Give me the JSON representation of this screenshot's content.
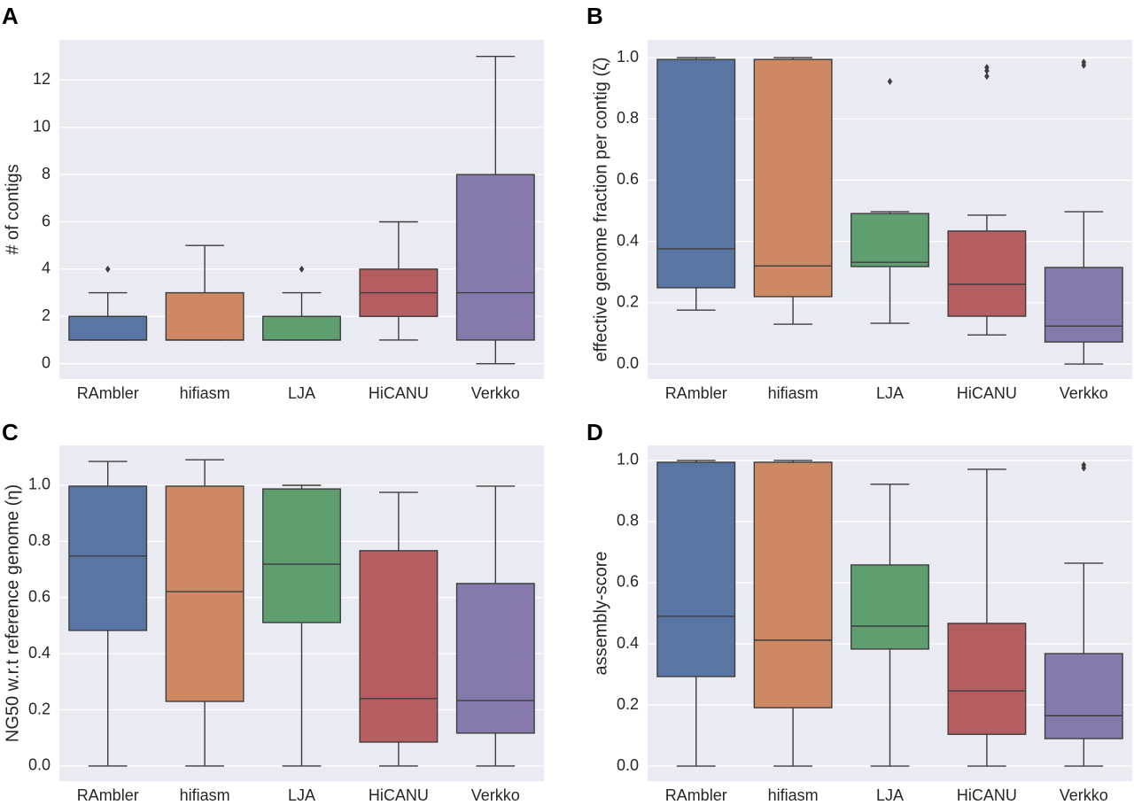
{
  "chart_data": [
    {
      "type": "box",
      "label": "A",
      "ylabel": "# of contigs",
      "categories": [
        "RAmbler",
        "hifiasm",
        "LJA",
        "HiCANU",
        "Verkko"
      ],
      "boxes": [
        {
          "color": "#5875a4",
          "min": 1,
          "q1": 1,
          "median": 1,
          "q3": 2,
          "max": 3,
          "outliers": [
            4
          ]
        },
        {
          "color": "#cc8963",
          "min": 1,
          "q1": 1,
          "median": 1,
          "q3": 3,
          "max": 5,
          "outliers": []
        },
        {
          "color": "#5f9e6e",
          "min": 1,
          "q1": 1,
          "median": 1,
          "q3": 2,
          "max": 3,
          "outliers": [
            4
          ]
        },
        {
          "color": "#b55d60",
          "min": 1,
          "q1": 2,
          "median": 3,
          "q3": 4,
          "max": 6,
          "outliers": []
        },
        {
          "color": "#857aab",
          "min": 0,
          "q1": 1,
          "median": 3,
          "q3": 8,
          "max": 13,
          "outliers": []
        }
      ],
      "ylim": [
        -0.65,
        13.7
      ],
      "yticks": [
        0,
        2,
        4,
        6,
        8,
        10,
        12
      ],
      "grid": true
    },
    {
      "type": "box",
      "label": "B",
      "ylabel": "effective genome fraction per contig (ζ)",
      "categories": [
        "RAmbler",
        "hifiasm",
        "LJA",
        "HiCANU",
        "Verkko"
      ],
      "boxes": [
        {
          "color": "#5875a4",
          "min": 0.176,
          "q1": 0.249,
          "median": 0.376,
          "q3": 0.994,
          "max": 1.0,
          "outliers": []
        },
        {
          "color": "#cc8963",
          "min": 0.13,
          "q1": 0.22,
          "median": 0.32,
          "q3": 0.994,
          "max": 1.0,
          "outliers": []
        },
        {
          "color": "#5f9e6e",
          "min": 0.133,
          "q1": 0.318,
          "median": 0.332,
          "q3": 0.491,
          "max": 0.497,
          "outliers": [
            0.922
          ]
        },
        {
          "color": "#b55d60",
          "min": 0.095,
          "q1": 0.156,
          "median": 0.26,
          "q3": 0.434,
          "max": 0.486,
          "outliers": [
            0.939,
            0.957,
            0.968
          ]
        },
        {
          "color": "#857aab",
          "min": 0,
          "q1": 0.072,
          "median": 0.124,
          "q3": 0.315,
          "max": 0.497,
          "outliers": [
            0.975,
            0.985
          ]
        }
      ],
      "ylim": [
        -0.049,
        1.058
      ],
      "yticks": [
        {
          "value": 0,
          "label": "0.0"
        },
        0.2,
        0.4,
        0.6,
        0.8,
        {
          "value": 1,
          "label": "1.0"
        }
      ],
      "grid": true
    },
    {
      "type": "box",
      "label": "C",
      "ylabel": "NG50 w.r.t reference genome (η)",
      "categories": [
        "RAmbler",
        "hifiasm",
        "LJA",
        "HiCANU",
        "Verkko"
      ],
      "boxes": [
        {
          "color": "#5875a4",
          "min": 0,
          "q1": 0.483,
          "median": 0.748,
          "q3": 0.997,
          "max": 1.085,
          "outliers": []
        },
        {
          "color": "#cc8963",
          "min": 0,
          "q1": 0.23,
          "median": 0.621,
          "q3": 0.997,
          "max": 1.091,
          "outliers": []
        },
        {
          "color": "#5f9e6e",
          "min": 0,
          "q1": 0.511,
          "median": 0.719,
          "q3": 0.987,
          "max": 1.0,
          "outliers": []
        },
        {
          "color": "#b55d60",
          "min": 0,
          "q1": 0.085,
          "median": 0.24,
          "q3": 0.767,
          "max": 0.975,
          "outliers": []
        },
        {
          "color": "#857aab",
          "min": 0,
          "q1": 0.117,
          "median": 0.233,
          "q3": 0.65,
          "max": 0.997,
          "outliers": []
        }
      ],
      "ylim": [
        -0.054,
        1.142
      ],
      "yticks": [
        {
          "value": 0,
          "label": "0.0"
        },
        0.2,
        0.4,
        0.6,
        0.8,
        {
          "value": 1,
          "label": "1.0"
        }
      ],
      "grid": true
    },
    {
      "type": "box",
      "label": "D",
      "ylabel": "assembly-score",
      "categories": [
        "RAmbler",
        "hifiasm",
        "LJA",
        "HiCANU",
        "Verkko"
      ],
      "boxes": [
        {
          "color": "#5875a4",
          "min": 0,
          "q1": 0.293,
          "median": 0.49,
          "q3": 0.994,
          "max": 1.0,
          "outliers": []
        },
        {
          "color": "#cc8963",
          "min": 0,
          "q1": 0.191,
          "median": 0.412,
          "q3": 0.994,
          "max": 1.0,
          "outliers": []
        },
        {
          "color": "#5f9e6e",
          "min": 0,
          "q1": 0.383,
          "median": 0.458,
          "q3": 0.658,
          "max": 0.922,
          "outliers": []
        },
        {
          "color": "#b55d60",
          "min": 0,
          "q1": 0.104,
          "median": 0.246,
          "q3": 0.467,
          "max": 0.971,
          "outliers": []
        },
        {
          "color": "#857aab",
          "min": 0,
          "q1": 0.09,
          "median": 0.165,
          "q3": 0.368,
          "max": 0.664,
          "outliers": [
            0.975,
            0.985
          ]
        }
      ],
      "ylim": [
        -0.049,
        1.049
      ],
      "yticks": [
        {
          "value": 0,
          "label": "0.0"
        },
        0.2,
        0.4,
        0.6,
        0.8,
        {
          "value": 1,
          "label": "1.0"
        }
      ],
      "grid": true
    }
  ]
}
